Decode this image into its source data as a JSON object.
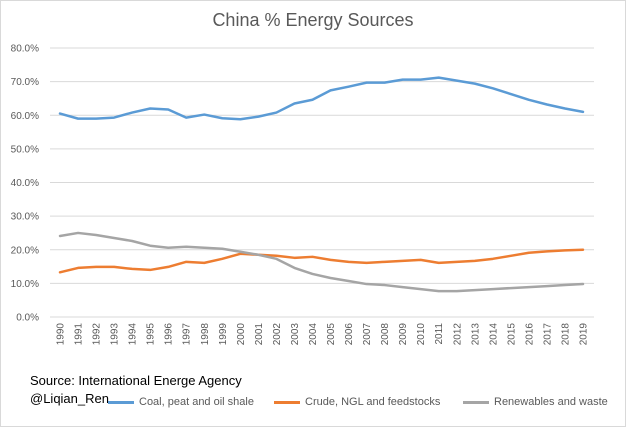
{
  "chart_data": {
    "type": "line",
    "title": "China % Energy Sources",
    "xlabel": "",
    "ylabel": "",
    "ylim": [
      0,
      80
    ],
    "yticks": [
      "0.0%",
      "10.0%",
      "20.0%",
      "30.0%",
      "40.0%",
      "50.0%",
      "60.0%",
      "70.0%",
      "80.0%"
    ],
    "grid": true,
    "legend_position": "bottom",
    "x": [
      "1990",
      "1991",
      "1992",
      "1993",
      "1994",
      "1995",
      "1996",
      "1997",
      "1998",
      "1999",
      "2000",
      "2001",
      "2002",
      "2003",
      "2004",
      "2005",
      "2006",
      "2007",
      "2008",
      "2009",
      "2010",
      "2011",
      "2012",
      "2013",
      "2014",
      "2015",
      "2016",
      "2017",
      "2018",
      "2019"
    ],
    "series": [
      {
        "name": "Coal, peat and oil shale",
        "color": "#5b9bd5",
        "values": [
          60.5,
          59,
          59,
          59.3,
          60.8,
          62,
          61.7,
          59.3,
          60.2,
          59.1,
          58.8,
          59.6,
          60.8,
          63.5,
          64.6,
          67.4,
          68.5,
          69.7,
          69.7,
          70.6,
          70.6,
          71.2,
          70.3,
          69.4,
          68,
          66.3,
          64.6,
          63.2,
          62,
          61
        ]
      },
      {
        "name": "Crude, NGL and feedstocks",
        "color": "#ed7d31",
        "values": [
          13.3,
          14.6,
          14.9,
          14.9,
          14.3,
          14,
          14.9,
          16.4,
          16.1,
          17.3,
          18.8,
          18.5,
          18.2,
          17.6,
          17.9,
          17,
          16.4,
          16.1,
          16.4,
          16.7,
          17,
          16.1,
          16.4,
          16.7,
          17.3,
          18.2,
          19.1,
          19.5,
          19.8,
          20
        ]
      },
      {
        "name": "Renewables and waste",
        "color": "#a5a5a5",
        "values": [
          24.1,
          25,
          24.4,
          23.5,
          22.6,
          21.2,
          20.6,
          20.9,
          20.6,
          20.3,
          19.4,
          18.5,
          17.3,
          14.6,
          12.8,
          11.6,
          10.7,
          9.8,
          9.5,
          8.9,
          8.3,
          7.7,
          7.7,
          8,
          8.3,
          8.6,
          8.9,
          9.2,
          9.5,
          9.8
        ]
      }
    ],
    "annotations": [
      "Source: International Energe Agency",
      "@Liqian_Ren"
    ]
  }
}
